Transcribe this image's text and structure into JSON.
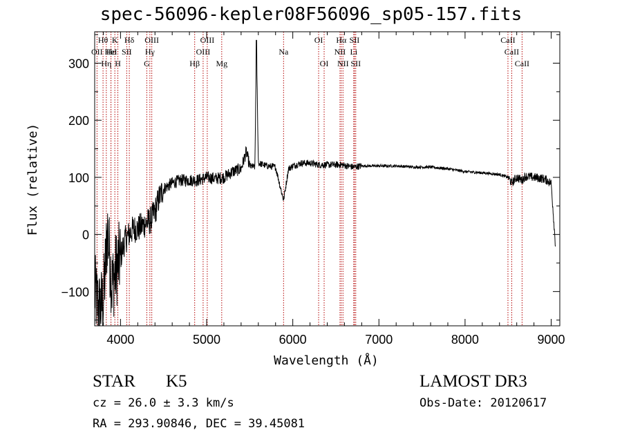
{
  "chart_data": {
    "type": "line",
    "title": "spec-56096-kepler08F56096_sp05-157.fits",
    "xlabel": "Wavelength (Å)",
    "ylabel": "Flux (relative)",
    "xlim": [
      3700,
      9100
    ],
    "ylim": [
      -160,
      355
    ],
    "xticks": [
      4000,
      5000,
      6000,
      7000,
      8000,
      9000
    ],
    "xtick_labels": [
      "4000",
      "5000",
      "6000",
      "7000",
      "8000",
      "9000"
    ],
    "yticks": [
      -100,
      0,
      100,
      200,
      300
    ],
    "ytick_labels": [
      "−100",
      "0",
      "100",
      "200",
      "300"
    ],
    "spectrum": {
      "x": [
        3700,
        3750,
        3800,
        3850,
        3900,
        3950,
        4000,
        4050,
        4100,
        4150,
        4200,
        4250,
        4300,
        4350,
        4400,
        4450,
        4500,
        4600,
        4700,
        4800,
        4900,
        5000,
        5100,
        5200,
        5300,
        5400,
        5460,
        5500,
        5560,
        5578,
        5600,
        5700,
        5800,
        5893,
        5950,
        6000,
        6100,
        6200,
        6300,
        6400,
        6563,
        6700,
        6800,
        7000,
        7200,
        7400,
        7600,
        7800,
        8000,
        8200,
        8400,
        8500,
        8542,
        8600,
        8662,
        8700,
        8800,
        8900,
        8950,
        9000,
        9050
      ],
      "y": [
        -100,
        -130,
        -120,
        10,
        -90,
        -60,
        -40,
        -10,
        0,
        10,
        10,
        15,
        20,
        25,
        40,
        65,
        80,
        90,
        95,
        95,
        95,
        100,
        98,
        100,
        110,
        115,
        145,
        120,
        118,
        340,
        125,
        120,
        118,
        60,
        115,
        120,
        125,
        125,
        122,
        122,
        122,
        118,
        120,
        120,
        120,
        118,
        118,
        115,
        110,
        108,
        105,
        100,
        90,
        100,
        95,
        102,
        100,
        98,
        95,
        90,
        -20
      ]
    },
    "lines": [
      {
        "label": "Hθ",
        "x": 3797,
        "row": 1
      },
      {
        "label": "OII",
        "x": 3727,
        "row": 2
      },
      {
        "label": "Hη",
        "x": 3835,
        "row": 3
      },
      {
        "label": "K",
        "x": 3934,
        "row": 1
      },
      {
        "label": "Hε",
        "x": 3889,
        "row": 2
      },
      {
        "label": "H",
        "x": 3969,
        "row": 3
      },
      {
        "label": "Hδ",
        "x": 4102,
        "row": 1
      },
      {
        "label": "HeI",
        "x": 3889,
        "row": 2
      },
      {
        "label": "SII",
        "x": 4072,
        "row": 2
      },
      {
        "label": "OIII",
        "x": 4363,
        "row": 1
      },
      {
        "label": "Hγ",
        "x": 4341,
        "row": 2
      },
      {
        "label": "G",
        "x": 4305,
        "row": 3
      },
      {
        "label": "Hβ",
        "x": 4861,
        "row": 3
      },
      {
        "label": "OIII",
        "x": 5007,
        "row": 1
      },
      {
        "label": "OIII",
        "x": 4959,
        "row": 2
      },
      {
        "label": "Mg",
        "x": 5175,
        "row": 3
      },
      {
        "label": "Na",
        "x": 5893,
        "row": 2
      },
      {
        "label": "OI",
        "x": 6300,
        "row": 1
      },
      {
        "label": "OI",
        "x": 6364,
        "row": 3
      },
      {
        "label": "Hα",
        "x": 6563,
        "row": 1
      },
      {
        "label": "NII",
        "x": 6548,
        "row": 2
      },
      {
        "label": "NII",
        "x": 6583,
        "row": 3
      },
      {
        "label": "SII",
        "x": 6716,
        "row": 1
      },
      {
        "label": "Li",
        "x": 6708,
        "row": 2
      },
      {
        "label": "SII",
        "x": 6731,
        "row": 3
      },
      {
        "label": "CaII",
        "x": 8498,
        "row": 1
      },
      {
        "label": "CaII",
        "x": 8542,
        "row": 2
      },
      {
        "label": "CaII",
        "x": 8662,
        "row": 3
      }
    ]
  },
  "info": {
    "class": "STAR",
    "subclass": "K5",
    "survey": "LAMOST DR3",
    "cz": "cz = 26.0 ± 3.3 km/s",
    "obs_date": "Obs-Date: 20120617",
    "radec": "RA = 293.90846, DEC =  39.45081"
  }
}
